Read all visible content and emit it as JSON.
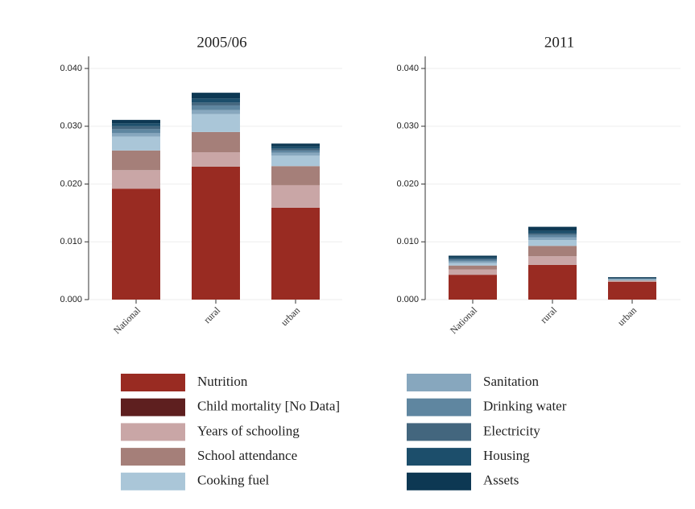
{
  "chart_data": [
    {
      "type": "bar",
      "stacked": true,
      "title": "2005/06",
      "categories": [
        "National",
        "rural",
        "urban"
      ],
      "ylim": [
        0,
        0.04
      ],
      "yticks": [
        {
          "value": 0,
          "label": "0.000"
        },
        {
          "value": 0.01,
          "label": "0.010"
        },
        {
          "value": 0.02,
          "label": "0.020"
        },
        {
          "value": 0.03,
          "label": "0.030"
        },
        {
          "value": 0.04,
          "label": "0.040"
        }
      ],
      "grid": true,
      "series": [
        {
          "name": "Nutrition",
          "color": "#992b22",
          "values": [
            0.0192,
            0.023,
            0.0159
          ]
        },
        {
          "name": "Child mortality [No Data]",
          "color": "#5e1f1f",
          "values": [
            0,
            0,
            0
          ]
        },
        {
          "name": "Years of schooling",
          "color": "#c9a6a6",
          "values": [
            0.0032,
            0.0025,
            0.0039
          ]
        },
        {
          "name": "School attendance",
          "color": "#a57f79",
          "values": [
            0.0034,
            0.0035,
            0.0033
          ]
        },
        {
          "name": "Cooking fuel",
          "color": "#aac6d8",
          "values": [
            0.0024,
            0.0031,
            0.0018
          ]
        },
        {
          "name": "Sanitation",
          "color": "#87a7be",
          "values": [
            0.0006,
            0.0007,
            0.0005
          ]
        },
        {
          "name": "Drinking water",
          "color": "#5f86a0",
          "values": [
            0.0007,
            0.0008,
            0.0004
          ]
        },
        {
          "name": "Electricity",
          "color": "#43667e",
          "values": [
            0.0005,
            0.0005,
            0.0003
          ]
        },
        {
          "name": "Housing",
          "color": "#1c4e6b",
          "values": [
            0.0005,
            0.0007,
            0.0004
          ]
        },
        {
          "name": "Assets",
          "color": "#0d3853",
          "values": [
            0.0006,
            0.001,
            0.0005
          ]
        }
      ]
    },
    {
      "type": "bar",
      "stacked": true,
      "title": "2011",
      "categories": [
        "National",
        "rural",
        "urban"
      ],
      "ylim": [
        0,
        0.04
      ],
      "yticks": [
        {
          "value": 0,
          "label": "0.000"
        },
        {
          "value": 0.01,
          "label": "0.010"
        },
        {
          "value": 0.02,
          "label": "0.020"
        },
        {
          "value": 0.03,
          "label": "0.030"
        },
        {
          "value": 0.04,
          "label": "0.040"
        }
      ],
      "grid": true,
      "series": [
        {
          "name": "Nutrition",
          "color": "#992b22",
          "values": [
            0.0043,
            0.006,
            0.0031
          ]
        },
        {
          "name": "Child mortality [No Data]",
          "color": "#5e1f1f",
          "values": [
            0,
            0,
            0
          ]
        },
        {
          "name": "Years of schooling",
          "color": "#c9a6a6",
          "values": [
            0.0009,
            0.0015,
            0.0001
          ]
        },
        {
          "name": "School attendance",
          "color": "#a57f79",
          "values": [
            0.0007,
            0.0018,
            0.0001
          ]
        },
        {
          "name": "Cooking fuel",
          "color": "#aac6d8",
          "values": [
            0.0004,
            0.001,
            0.0001
          ]
        },
        {
          "name": "Sanitation",
          "color": "#87a7be",
          "values": [
            0.0003,
            0.0005,
            0.0001
          ]
        },
        {
          "name": "Drinking water",
          "color": "#5f86a0",
          "values": [
            0.0003,
            0.0004,
            0.0001
          ]
        },
        {
          "name": "Electricity",
          "color": "#43667e",
          "values": [
            0.0002,
            0.0003,
            0.0001
          ]
        },
        {
          "name": "Housing",
          "color": "#1c4e6b",
          "values": [
            0.0002,
            0.0004,
            0.0001
          ]
        },
        {
          "name": "Assets",
          "color": "#0d3853",
          "values": [
            0.0003,
            0.0007,
            0.0001
          ]
        }
      ]
    }
  ]
}
